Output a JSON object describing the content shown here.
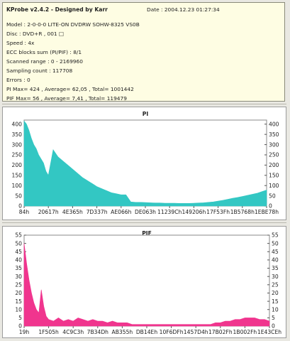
{
  "info": {
    "title": "KProbe v2.4.2 - Designed by Karr",
    "date": "Date : 2004.12.23 01:27:34",
    "lines": [
      "Model : 2-0-0-0 LITE-ON DVDRW SOHW-8325  VS0B",
      "Disc : DVD+R , 001 □",
      "Speed : 4x",
      "ECC blocks sum (PI/PIF) : 8/1",
      "Scanned range : 0 - 2169960",
      "Sampling count : 117708",
      "Errors : 0",
      "PI Max= 424 , Average= 62,05 , Total= 1001442",
      "PIF Max= 56 , Average= 7,41 , Total= 119479"
    ]
  },
  "chart_data": [
    {
      "type": "area",
      "title": "PI",
      "color": "#33c7c3",
      "ylim": [
        0,
        420
      ],
      "yticks": [
        0,
        50,
        100,
        150,
        200,
        250,
        300,
        350,
        400
      ],
      "x_ticks": [
        "84h",
        "20617h",
        "4E365h",
        "7D337h",
        "AE066h",
        "DE063h",
        "11239Ch",
        "149206h",
        "17F53Fh",
        "1B5768h",
        "1EBE78h"
      ],
      "x": [
        0,
        1,
        2,
        3,
        4,
        5,
        6,
        7,
        8,
        9,
        10,
        12,
        14,
        16,
        18,
        20,
        22,
        24,
        26,
        28,
        30,
        32,
        34,
        36,
        38,
        40,
        42,
        44,
        46,
        48,
        50,
        52,
        54,
        56,
        58,
        60,
        62,
        64,
        66,
        68,
        70,
        72,
        74,
        76,
        78,
        80,
        82,
        84,
        86,
        88,
        90,
        92,
        94,
        96,
        98,
        100
      ],
      "y": [
        415,
        400,
        370,
        330,
        300,
        280,
        250,
        230,
        210,
        170,
        150,
        275,
        240,
        220,
        200,
        180,
        160,
        140,
        125,
        110,
        95,
        85,
        75,
        65,
        60,
        55,
        55,
        20,
        18,
        18,
        17,
        16,
        15,
        15,
        14,
        14,
        14,
        13,
        13,
        13,
        14,
        15,
        16,
        18,
        20,
        24,
        28,
        33,
        38,
        42,
        47,
        52,
        57,
        62,
        70,
        78
      ]
    },
    {
      "type": "area",
      "title": "PIF",
      "color": "#f0358e",
      "ylim": [
        0,
        55
      ],
      "yticks": [
        0,
        5,
        10,
        15,
        20,
        25,
        30,
        35,
        40,
        45,
        50,
        55
      ],
      "x_ticks": [
        "19h",
        "1F505h",
        "4C9C3h",
        "7B34Dh",
        "AB355h",
        "DB14Eh",
        "10F6DFh",
        "1457D4h",
        "17B02Fh",
        "1B002Fh",
        "1E43CEh"
      ],
      "x": [
        0,
        1,
        2,
        3,
        4,
        5,
        6,
        7,
        8,
        9,
        10,
        12,
        14,
        16,
        18,
        20,
        22,
        24,
        26,
        28,
        30,
        32,
        34,
        36,
        38,
        40,
        42,
        44,
        46,
        48,
        50,
        52,
        54,
        56,
        58,
        60,
        62,
        64,
        66,
        68,
        70,
        72,
        74,
        76,
        78,
        80,
        82,
        84,
        86,
        88,
        90,
        92,
        94,
        96,
        98,
        100
      ],
      "y": [
        50,
        38,
        28,
        20,
        14,
        10,
        8,
        22,
        12,
        6,
        4,
        3,
        5,
        3,
        4,
        3,
        5,
        4,
        3,
        4,
        3,
        3,
        2,
        3,
        2,
        2,
        2,
        1,
        1,
        1,
        1,
        1,
        1,
        1,
        1,
        1,
        1,
        1,
        1,
        1,
        1,
        1,
        1,
        1,
        2,
        2,
        3,
        3,
        4,
        4,
        5,
        5,
        5,
        4,
        4,
        3
      ]
    }
  ]
}
